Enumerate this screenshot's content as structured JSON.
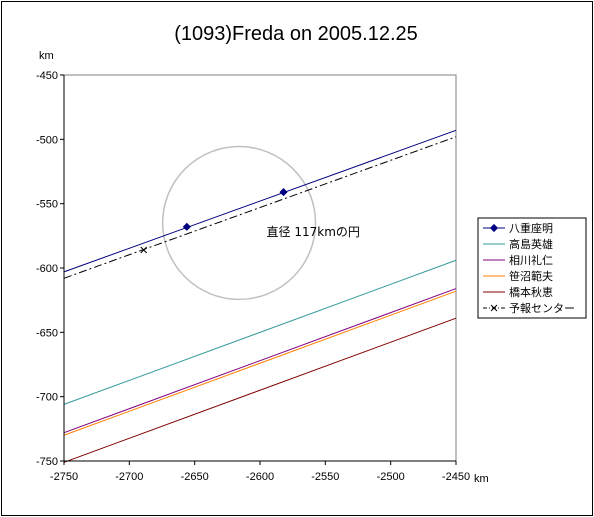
{
  "chart_data": {
    "type": "line",
    "title": "(1093)Freda on 2005.12.25",
    "xlabel": "km",
    "ylabel": "km",
    "xlim": [
      -2750,
      -2450
    ],
    "ylim": [
      -750,
      -450
    ],
    "xticks": [
      -2750,
      -2700,
      -2650,
      -2600,
      -2550,
      -2500,
      -2450
    ],
    "yticks": [
      -450,
      -500,
      -550,
      -600,
      -650,
      -700,
      -750
    ],
    "grid": false,
    "legend_position": "right",
    "annotation": {
      "text": "直径 117kmの円",
      "x": -2595,
      "y": -575
    },
    "circle": {
      "center_x": -2616,
      "center_y": -565,
      "diameter_km": 117,
      "color": "#c0c0c0"
    },
    "series": [
      {
        "name": "八重座明",
        "color": "#000080",
        "style": "solid",
        "marker": "diamond",
        "line": [
          [
            -2750,
            -603
          ],
          [
            -2450,
            -493
          ]
        ],
        "points": [
          [
            -2656,
            -568
          ],
          [
            -2582,
            -541
          ]
        ]
      },
      {
        "name": "高島英雄",
        "color": "#339999",
        "style": "solid",
        "line": [
          [
            -2750,
            -706
          ],
          [
            -2450,
            -594
          ]
        ]
      },
      {
        "name": "相川礼仁",
        "color": "#800080",
        "style": "solid",
        "line": [
          [
            -2750,
            -728
          ],
          [
            -2450,
            -616
          ]
        ]
      },
      {
        "name": "笹沼範夫",
        "color": "#ff8000",
        "style": "solid",
        "line": [
          [
            -2750,
            -730
          ],
          [
            -2450,
            -618
          ]
        ]
      },
      {
        "name": "橋本秋恵",
        "color": "#800000",
        "style": "solid",
        "line": [
          [
            -2750,
            -751
          ],
          [
            -2450,
            -639
          ]
        ]
      },
      {
        "name": "予報センター",
        "color": "#000000",
        "style": "dashdot",
        "marker": "x",
        "line": [
          [
            -2750,
            -608
          ],
          [
            -2450,
            -498
          ]
        ],
        "points": [
          [
            -2689,
            -586
          ]
        ]
      }
    ]
  }
}
